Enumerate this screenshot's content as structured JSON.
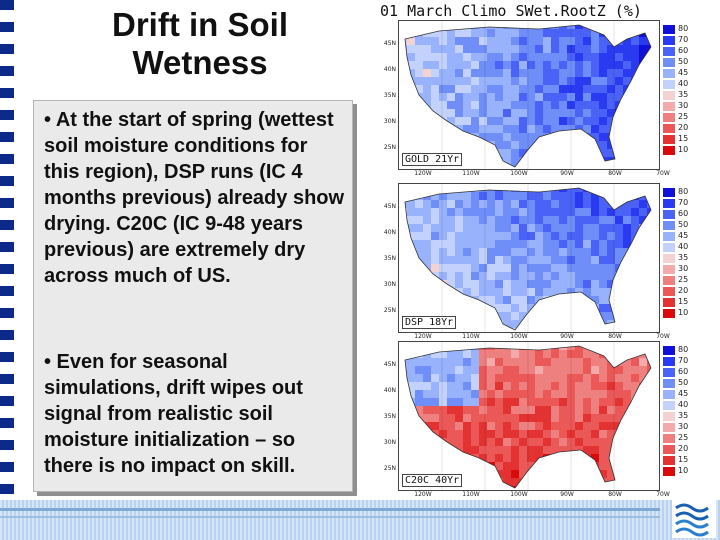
{
  "slide": {
    "title": "Drift in Soil Wetness",
    "bullets": [
      "• At the start of spring (wettest soil moisture conditions for this region), DSP runs (IC 4 months previous) already show drying.  C20C (IC 9-48 years previous) are extremely dry across much of US.",
      "• Even for seasonal simulations, drift wipes out signal from realistic soil moisture initialization – so there is no impact on skill."
    ]
  },
  "figure": {
    "title": "01 March Climo SWet.RootZ (%)",
    "lat_ticks": [
      "45N",
      "40N",
      "35N",
      "30N",
      "25N"
    ],
    "lon_ticks": [
      "120W",
      "110W",
      "100W",
      "90W",
      "80W",
      "70W"
    ],
    "legend_levels": [
      "80",
      "70",
      "60",
      "50",
      "45",
      "40",
      "35",
      "30",
      "25",
      "20",
      "15",
      "10"
    ],
    "legend_colors": [
      "#1010d8",
      "#2a3af0",
      "#4a62f5",
      "#6f8ef8",
      "#98b2fb",
      "#c2d2fd",
      "#f4d2d2",
      "#f3aaaa",
      "#ef8080",
      "#ea5858",
      "#e33232",
      "#d80a0a"
    ],
    "panels": [
      {
        "label": "GOLD 21Yr",
        "regime": "wet"
      },
      {
        "label": "DSP 18Yr",
        "regime": "mixed"
      },
      {
        "label": "C20C 40Yr",
        "regime": "dry"
      }
    ]
  },
  "footer": {
    "logo_icon": "waves-logo-icon"
  }
}
